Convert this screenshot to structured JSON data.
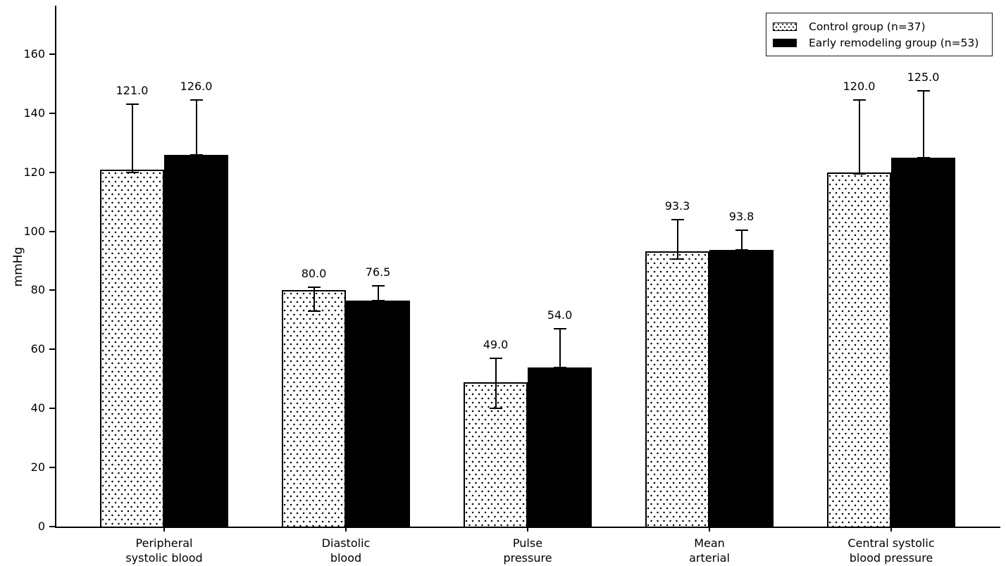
{
  "chart_data": {
    "type": "bar",
    "title": "",
    "xlabel": "",
    "ylabel": "mmHg",
    "ylim": [
      0,
      176.5
    ],
    "yticks": [
      0,
      20,
      40,
      60,
      80,
      100,
      120,
      140,
      160
    ],
    "grid": false,
    "background_color": "#ffffff",
    "categories": [
      [
        "Peripheral",
        "systolic blood"
      ],
      [
        "Diastolic",
        "blood"
      ],
      [
        "Pulse",
        "pressure"
      ],
      [
        "Mean",
        "arterial"
      ],
      [
        "Central systolic",
        "blood pressure"
      ]
    ],
    "series": [
      {
        "name": "Control group (n=37)",
        "fill": "#ffffff",
        "hatch": "dots",
        "edge_color": "#000000",
        "values": [
          121.0,
          80.0,
          49.0,
          93.3,
          120.0
        ],
        "value_labels": [
          "121.0",
          "80.0",
          "49.0",
          "93.3",
          "120.0"
        ],
        "err_low": [
          120.0,
          73.0,
          40.0,
          90.5,
          119.5
        ],
        "err_high": [
          143.0,
          81.0,
          57.0,
          104.0,
          144.5
        ]
      },
      {
        "name": "Early remodeling group (n=53)",
        "fill": "#000000",
        "hatch": "none",
        "edge_color": "#000000",
        "values": [
          126.0,
          76.5,
          54.0,
          93.8,
          125.0
        ],
        "value_labels": [
          "126.0",
          "76.5",
          "54.0",
          "93.8",
          "125.0"
        ],
        "err_low": [
          126.0,
          76.5,
          54.0,
          93.8,
          125.0
        ],
        "err_high": [
          144.5,
          81.5,
          67.0,
          100.5,
          147.5
        ]
      }
    ],
    "legend": {
      "position": "upper-right",
      "entries": [
        "Control group (n=37)",
        "Early remodeling group (n=53)"
      ]
    }
  }
}
